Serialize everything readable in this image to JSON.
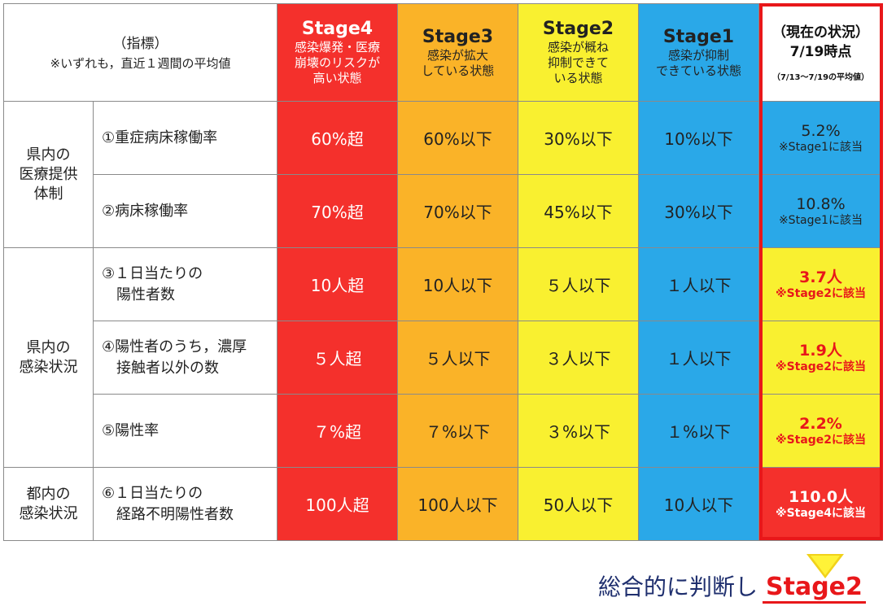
{
  "header": {
    "indicator_title": "（指標）",
    "indicator_note": "※いずれも，直近１週間の平均値",
    "stages": [
      {
        "name": "Stage4",
        "desc": [
          "感染爆発・医療",
          "崩壊のリスクが",
          "高い状態"
        ]
      },
      {
        "name": "Stage3",
        "desc": [
          "感染が拡大",
          "している状態"
        ]
      },
      {
        "name": "Stage2",
        "desc": [
          "感染が概ね",
          "抑制できて",
          "いる状態"
        ]
      },
      {
        "name": "Stage1",
        "desc": [
          "感染が抑制",
          "できている状態"
        ]
      }
    ],
    "current": {
      "title1": "（現在の状況）",
      "title2": "7/19時点",
      "sub": "（7/13～7/19の平均値）"
    }
  },
  "categories": [
    {
      "lines": [
        "県内の",
        "医療提供",
        "体制"
      ]
    },
    {
      "lines": [
        "県内の",
        "感染状況"
      ]
    },
    {
      "lines": [
        "都内の",
        "感染状況"
      ]
    }
  ],
  "rows": [
    {
      "indicator": [
        "①重症病床稼働率"
      ],
      "s4": "60%超",
      "s3": "60%以下",
      "s2": "30%以下",
      "s1": "10%以下",
      "current": "5.2%",
      "note": "※Stage1に該当"
    },
    {
      "indicator": [
        "②病床稼働率"
      ],
      "s4": "70%超",
      "s3": "70%以下",
      "s2": "45%以下",
      "s1": "30%以下",
      "current": "10.8%",
      "note": "※Stage1に該当"
    },
    {
      "indicator": [
        "③１日当たりの",
        "　陽性者数"
      ],
      "s4": "10人超",
      "s3": "10人以下",
      "s2": "５人以下",
      "s1": "１人以下",
      "current": "3.7人",
      "note": "※Stage2に該当"
    },
    {
      "indicator": [
        "④陽性者のうち，濃厚",
        "　接触者以外の数"
      ],
      "s4": "５人超",
      "s3": "５人以下",
      "s2": "３人以下",
      "s1": "１人以下",
      "current": "1.9人",
      "note": "※Stage2に該当"
    },
    {
      "indicator": [
        "⑤陽性率"
      ],
      "s4": "７%超",
      "s3": "７%以下",
      "s2": "３%以下",
      "s1": "１%以下",
      "current": "2.2%",
      "note": "※Stage2に該当"
    },
    {
      "indicator": [
        "⑥１日当たりの",
        "　経路不明陽性者数"
      ],
      "s4": "100人超",
      "s3": "100人以下",
      "s2": "50人以下",
      "s1": "10人以下",
      "current": "110.0人",
      "note": "※Stage4に該当"
    }
  ],
  "conclusion": {
    "text": "総合的に判断し",
    "stage": "Stage2"
  },
  "colors": {
    "stage4": "#f4302c",
    "stage3": "#fab328",
    "stage2": "#f9f030",
    "stage1": "#2aa8e8",
    "highlight": "#e8171a"
  }
}
